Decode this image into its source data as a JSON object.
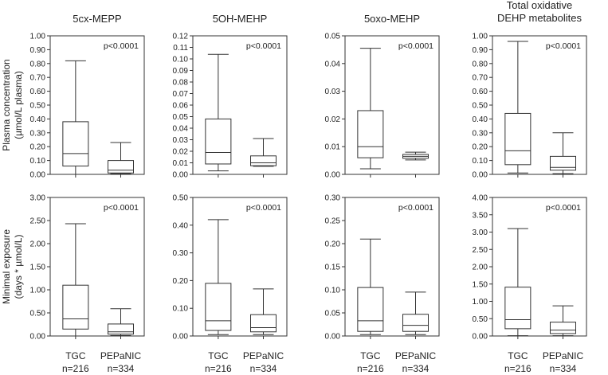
{
  "figure": {
    "row_labels": [
      [
        "Plasma concentration",
        "(µmol/L plasma)"
      ],
      [
        "Minimal exposure",
        "(days * µmol/L)"
      ]
    ],
    "x_categories": [
      {
        "label": "TGC",
        "n": "n=216"
      },
      {
        "label": "PEPaNIC",
        "n": "n=334"
      }
    ]
  },
  "chart_data": [
    {
      "type": "box",
      "id": "p-5cx-plasma",
      "title": [
        "5cx-MEPP"
      ],
      "annotation": "p<0.0001",
      "ylim": [
        0,
        1.0
      ],
      "ytick_labels": [
        "0.00",
        "0.10",
        "0.20",
        "0.30",
        "0.40",
        "0.50",
        "0.60",
        "0.70",
        "0.80",
        "0.90",
        "1.00"
      ],
      "categories": [
        "TGC",
        "PEPaNIC"
      ],
      "boxes": [
        {
          "min": 0.0,
          "q1": 0.06,
          "median": 0.15,
          "q3": 0.38,
          "max": 0.82
        },
        {
          "min": 0.005,
          "q1": 0.01,
          "median": 0.03,
          "q3": 0.1,
          "max": 0.23
        }
      ]
    },
    {
      "type": "box",
      "id": "p-5oh-plasma",
      "title": [
        "5OH-MEHP"
      ],
      "annotation": "p<0.0001",
      "ylim": [
        0,
        0.12
      ],
      "ytick_labels": [
        "0.00",
        "0.01",
        "0.02",
        "0.03",
        "0.04",
        "0.05",
        "0.06",
        "0.07",
        "0.08",
        "0.09",
        "0.10",
        "0.11",
        "0.12"
      ],
      "categories": [
        "TGC",
        "PEPaNIC"
      ],
      "boxes": [
        {
          "min": 0.003,
          "q1": 0.009,
          "median": 0.019,
          "q3": 0.048,
          "max": 0.104
        },
        {
          "min": 0.007,
          "q1": 0.0075,
          "median": 0.01,
          "q3": 0.016,
          "max": 0.031
        }
      ]
    },
    {
      "type": "box",
      "id": "p-5oxo-plasma",
      "title": [
        "5oxo-MEHP"
      ],
      "annotation": "p<0.0001",
      "ylim": [
        0,
        0.05
      ],
      "ytick_labels": [
        "0.00",
        "0.01",
        "0.02",
        "0.03",
        "0.04",
        "0.05"
      ],
      "categories": [
        "TGC",
        "PEPaNIC"
      ],
      "boxes": [
        {
          "min": 0.002,
          "q1": 0.006,
          "median": 0.01,
          "q3": 0.023,
          "max": 0.0455
        },
        {
          "min": 0.0052,
          "q1": 0.0058,
          "median": 0.0065,
          "q3": 0.0072,
          "max": 0.008
        }
      ]
    },
    {
      "type": "box",
      "id": "p-total-plasma",
      "title": [
        "Total oxidative",
        "DEHP metabolites"
      ],
      "annotation": "p<0.0001",
      "ylim": [
        0,
        1.0
      ],
      "ytick_labels": [
        "0.00",
        "0.10",
        "0.20",
        "0.30",
        "0.40",
        "0.50",
        "0.60",
        "0.70",
        "0.80",
        "0.90",
        "1.00"
      ],
      "categories": [
        "TGC",
        "PEPaNIC"
      ],
      "boxes": [
        {
          "min": 0.01,
          "q1": 0.07,
          "median": 0.17,
          "q3": 0.44,
          "max": 0.96
        },
        {
          "min": 0.005,
          "q1": 0.03,
          "median": 0.05,
          "q3": 0.13,
          "max": 0.3
        }
      ]
    },
    {
      "type": "box",
      "id": "p-5cx-exposure",
      "title": [],
      "annotation": "p<0.0001",
      "ylim": [
        0,
        3.0
      ],
      "ytick_labels": [
        "0.00",
        "0.50",
        "1.00",
        "1.50",
        "2.00",
        "2.50",
        "3.00"
      ],
      "categories": [
        "TGC",
        "PEPaNIC"
      ],
      "boxes": [
        {
          "min": 0.0,
          "q1": 0.15,
          "median": 0.37,
          "q3": 1.1,
          "max": 2.43
        },
        {
          "min": 0.01,
          "q1": 0.04,
          "median": 0.09,
          "q3": 0.26,
          "max": 0.59
        }
      ]
    },
    {
      "type": "box",
      "id": "p-5oh-exposure",
      "title": [],
      "annotation": "p<0.0001",
      "ylim": [
        0,
        0.5
      ],
      "ytick_labels": [
        "0.00",
        "0.10",
        "0.20",
        "0.30",
        "0.40",
        "0.50"
      ],
      "categories": [
        "TGC",
        "PEPaNIC"
      ],
      "boxes": [
        {
          "min": 0.005,
          "q1": 0.02,
          "median": 0.055,
          "q3": 0.19,
          "max": 0.42
        },
        {
          "min": 0.005,
          "q1": 0.015,
          "median": 0.03,
          "q3": 0.077,
          "max": 0.17
        }
      ]
    },
    {
      "type": "box",
      "id": "p-5oxo-exposure",
      "title": [],
      "annotation": "p<0.0001",
      "ylim": [
        0,
        0.3
      ],
      "ytick_labels": [
        "0.00",
        "0.05",
        "0.10",
        "0.15",
        "0.20",
        "0.25",
        "0.30"
      ],
      "categories": [
        "TGC",
        "PEPaNIC"
      ],
      "boxes": [
        {
          "min": 0.003,
          "q1": 0.01,
          "median": 0.033,
          "q3": 0.105,
          "max": 0.21
        },
        {
          "min": 0.003,
          "q1": 0.01,
          "median": 0.023,
          "q3": 0.047,
          "max": 0.095
        }
      ]
    },
    {
      "type": "box",
      "id": "p-total-exposure",
      "title": [],
      "annotation": "p<0.0001",
      "ylim": [
        0,
        4.0
      ],
      "ytick_labels": [
        "0.00",
        "0.50",
        "1.00",
        "1.50",
        "2.00",
        "2.50",
        "3.00",
        "3.50",
        "4.00"
      ],
      "categories": [
        "TGC",
        "PEPaNIC"
      ],
      "boxes": [
        {
          "min": 0.01,
          "q1": 0.21,
          "median": 0.47,
          "q3": 1.41,
          "max": 3.1
        },
        {
          "min": 0.01,
          "q1": 0.07,
          "median": 0.17,
          "q3": 0.4,
          "max": 0.87
        }
      ]
    }
  ]
}
